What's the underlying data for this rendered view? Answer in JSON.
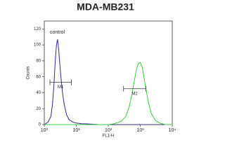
{
  "chart_data": {
    "type": "histogram-overlay",
    "title": "MDA-MB231",
    "x_label": "FL1-H",
    "y_label": "Counts",
    "annotation": "control",
    "log_x": true,
    "xlim": [
      1,
      10000
    ],
    "xticks": [
      {
        "value": 1,
        "label": "10⁰"
      },
      {
        "value": 10,
        "label": "10¹"
      },
      {
        "value": 100,
        "label": "10²"
      },
      {
        "value": 1000,
        "label": "10³"
      },
      {
        "value": 10000,
        "label": "10⁴"
      }
    ],
    "ylim": [
      0,
      130
    ],
    "yticks": [
      0,
      20,
      40,
      60,
      80,
      100,
      120
    ],
    "series": [
      {
        "color": "#2b2b8c",
        "x": [
          1,
          1.3,
          1.6,
          1.8,
          2.0,
          2.2,
          2.4,
          2.6,
          2.8,
          3.0,
          3.3,
          3.7,
          4.2,
          5,
          6,
          8,
          10,
          15,
          20,
          50,
          100,
          1000,
          10000
        ],
        "values": [
          0,
          3,
          10,
          25,
          50,
          80,
          100,
          107,
          95,
          80,
          60,
          40,
          25,
          12,
          6,
          3,
          2,
          1,
          1,
          0,
          0,
          0,
          0
        ]
      },
      {
        "color": "#3ccc3c",
        "x": [
          1,
          10,
          100,
          150,
          250,
          350,
          450,
          550,
          650,
          750,
          850,
          1000,
          1150,
          1300,
          1500,
          1800,
          2200,
          3000,
          4000,
          6000,
          10000
        ],
        "values": [
          0,
          0,
          0,
          1,
          4,
          10,
          22,
          38,
          55,
          68,
          76,
          78,
          72,
          60,
          45,
          28,
          14,
          5,
          2,
          0,
          0
        ]
      }
    ],
    "gates": [
      {
        "label": "M1",
        "x": [
          1.5,
          7
        ],
        "y": 53
      },
      {
        "label": "M2",
        "x": [
          300,
          1500
        ],
        "y": 45
      }
    ]
  }
}
